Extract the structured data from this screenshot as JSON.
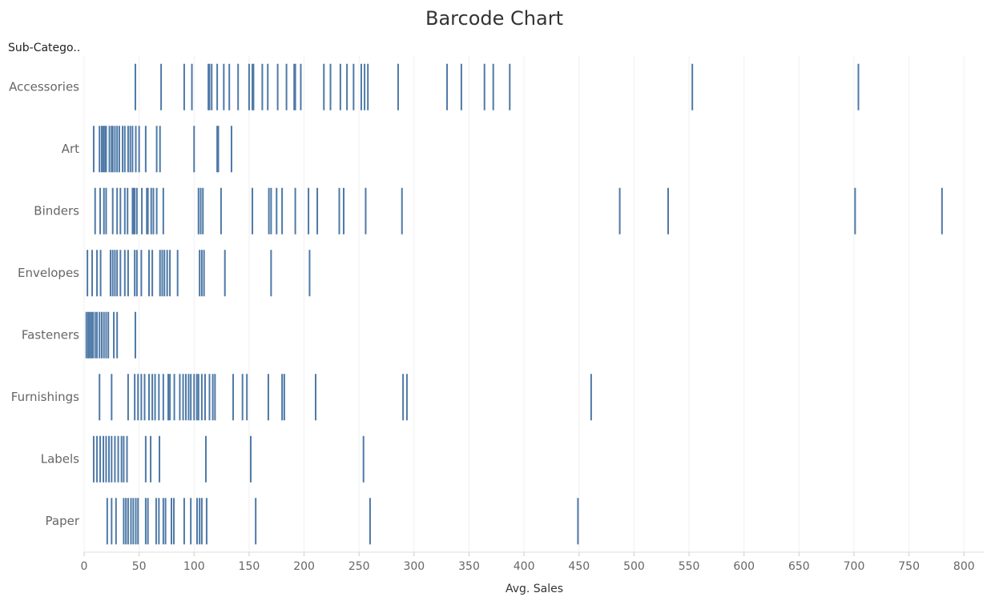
{
  "chart_data": {
    "type": "barcode",
    "title": "Barcode Chart",
    "y_label": "Sub-Catego..",
    "x_label": "Avg. Sales",
    "color": "#4e79a7",
    "grid": true,
    "xlim": [
      0,
      818
    ],
    "xticks": [
      0,
      50,
      100,
      150,
      200,
      250,
      300,
      350,
      400,
      450,
      500,
      550,
      600,
      650,
      700,
      750,
      800
    ],
    "categories": [
      "Accessories",
      "Art",
      "Binders",
      "Envelopes",
      "Fasteners",
      "Furnishings",
      "Labels",
      "Paper"
    ],
    "values": [
      [
        46.6,
        70,
        91,
        98,
        113,
        114,
        116,
        121,
        127,
        132,
        140,
        150,
        153,
        154,
        162,
        167,
        176,
        184,
        191,
        192,
        197,
        218,
        224,
        233,
        239,
        245,
        252,
        255,
        258,
        285.5,
        330,
        343,
        364,
        372,
        387,
        553,
        704
      ],
      [
        8.7,
        14,
        16,
        17.5,
        19,
        20,
        23,
        25,
        26,
        28,
        30,
        32,
        35,
        37,
        40,
        42,
        44,
        47,
        50,
        56,
        66,
        69,
        100,
        121,
        122,
        134
      ],
      [
        10,
        14.6,
        18,
        20,
        26,
        30,
        33,
        37,
        39.5,
        44,
        45,
        46,
        48,
        52.5,
        57,
        58,
        61,
        63,
        66,
        72,
        104,
        106,
        108,
        124.5,
        153,
        168,
        170,
        175,
        180,
        192,
        204,
        212,
        232,
        236,
        256,
        289,
        487,
        531,
        701,
        780
      ],
      [
        3,
        7.3,
        11.7,
        15,
        24,
        26,
        28,
        30,
        33,
        37,
        40,
        46,
        48,
        52,
        59,
        62,
        69,
        71,
        73,
        75.5,
        78,
        85,
        105,
        107,
        109,
        128,
        170,
        205
      ],
      [
        2,
        3.6,
        5,
        6.5,
        8,
        10,
        11.7,
        14,
        16,
        18,
        20,
        22,
        27,
        30,
        46.6
      ],
      [
        14,
        25,
        40,
        46,
        49,
        52,
        55,
        59,
        62,
        64.5,
        68,
        72,
        76.5,
        78,
        82,
        87,
        90,
        92.5,
        95,
        97,
        100,
        102.5,
        104,
        107,
        110,
        114,
        117,
        119,
        135.5,
        144,
        148,
        167.5,
        180,
        182,
        210.5,
        290,
        293.5,
        461
      ],
      [
        8.7,
        11.7,
        14.6,
        17.5,
        20,
        22.6,
        25,
        28,
        31,
        34,
        36,
        39,
        56,
        60.5,
        68.5,
        110.7,
        151.5,
        254
      ],
      [
        21,
        25,
        29,
        36,
        38,
        40,
        42.6,
        44.7,
        47,
        49,
        56,
        58,
        65.5,
        68,
        72,
        74,
        79.4,
        81.6,
        91,
        97,
        102.7,
        105,
        107,
        111.4,
        156,
        260,
        449
      ]
    ]
  }
}
